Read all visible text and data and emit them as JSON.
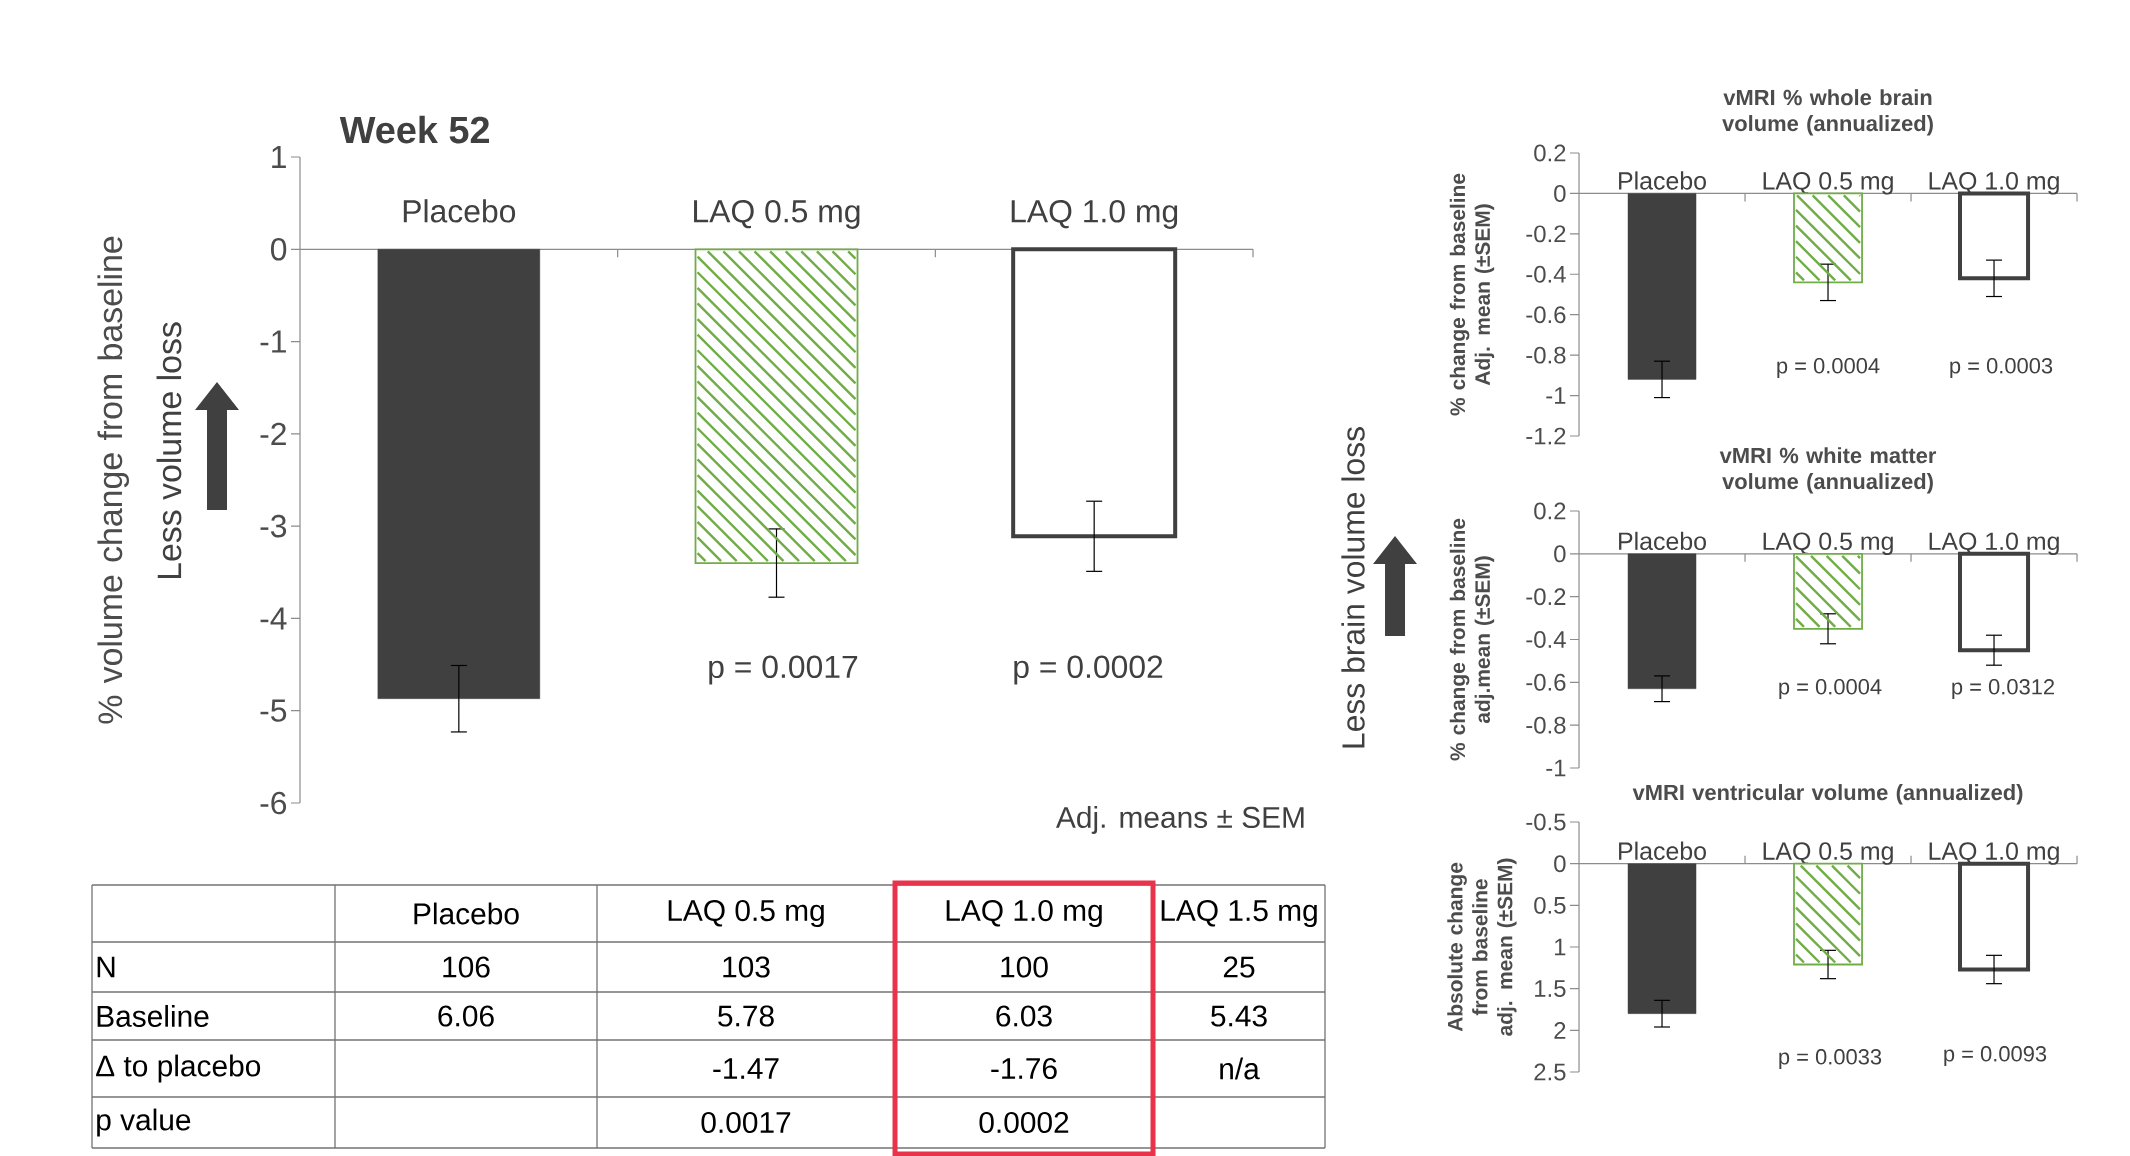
{
  "chart_data": [
    {
      "type": "bar",
      "title": "Week 52",
      "ylabel": "% volume change from baseline",
      "categories": [
        "Placebo",
        "LAQ 0.5 mg",
        "LAQ 1.0 mg"
      ],
      "values": [
        -4.87,
        -3.4,
        -3.11
      ],
      "errors": [
        0.36,
        0.37,
        0.38
      ],
      "colors": [
        "#404040",
        "#70ad47",
        "#404040"
      ],
      "ylim": [
        -6,
        1
      ],
      "yticks": [
        1,
        0,
        -1,
        -2,
        -3,
        -4,
        -5,
        -6
      ],
      "annotations": [
        "Less volume loss",
        "p = 0.0017",
        "p = 0.0002",
        "Adj. means ± SEM"
      ]
    },
    {
      "type": "bar",
      "title": "vMRI % whole brain volume (annualized)",
      "ylabel": "% change from baseline Adj. mean (±SEM)",
      "categories": [
        "Placebo",
        "LAQ 0.5 mg",
        "LAQ 1.0 mg"
      ],
      "values": [
        -0.92,
        -0.44,
        -0.42
      ],
      "errors": [
        0.09,
        0.09,
        0.09
      ],
      "colors": [
        "#404040",
        "#70ad47",
        "#404040"
      ],
      "ylim": [
        -1.2,
        0.2
      ],
      "yticks": [
        0.2,
        0,
        -0.2,
        -0.4,
        -0.6,
        -0.8,
        -1,
        -1.2
      ],
      "annotations": [
        "p = 0.0004",
        "p = 0.0003"
      ]
    },
    {
      "type": "bar",
      "title": "vMRI % white matter volume (annualized)",
      "ylabel": "% change from baseline adj.mean (±SEM)",
      "categories": [
        "Placebo",
        "LAQ 0.5 mg",
        "LAQ 1.0 mg"
      ],
      "values": [
        -0.63,
        -0.35,
        -0.45
      ],
      "errors": [
        0.06,
        0.07,
        0.07
      ],
      "colors": [
        "#404040",
        "#70ad47",
        "#404040"
      ],
      "ylim": [
        -1,
        0.2
      ],
      "yticks": [
        0.2,
        0,
        -0.2,
        -0.4,
        -0.6,
        -0.8,
        -1
      ],
      "annotations": [
        "Less brain volume loss",
        "p = 0.0004",
        "p = 0.0312"
      ]
    },
    {
      "type": "bar",
      "title": "vMRI ventricular volume (annualized)",
      "ylabel": "Absolute change from baseline adj. mean (±SEM)",
      "categories": [
        "Placebo",
        "LAQ 0.5 mg",
        "LAQ 1.0 mg"
      ],
      "values": [
        1.8,
        1.21,
        1.27
      ],
      "errors": [
        0.16,
        0.17,
        0.17
      ],
      "colors": [
        "#404040",
        "#70ad47",
        "#404040"
      ],
      "ylim": [
        2.5,
        -0.5
      ],
      "yticks": [
        -0.5,
        0,
        0.5,
        1,
        1.5,
        2,
        2.5
      ],
      "annotations": [
        "p = 0.0033",
        "p = 0.0093"
      ]
    },
    {
      "type": "other",
      "categories": [
        null,
        "Placebo",
        "LAQ 0.5 mg",
        "LAQ 1.0 mg",
        "LAQ 1.5 mg"
      ],
      "y_categories": [
        "N",
        "Baseline",
        "Δ to placebo",
        "p value"
      ],
      "cell_labels": [
        [
          "106",
          "103",
          "100",
          "25"
        ],
        [
          "6.06",
          "5.78",
          "6.03",
          "5.43"
        ],
        [
          null,
          "-1.47",
          "-1.76",
          "n/a"
        ],
        [
          null,
          "0.0017",
          "0.0002",
          null
        ]
      ]
    }
  ]
}
